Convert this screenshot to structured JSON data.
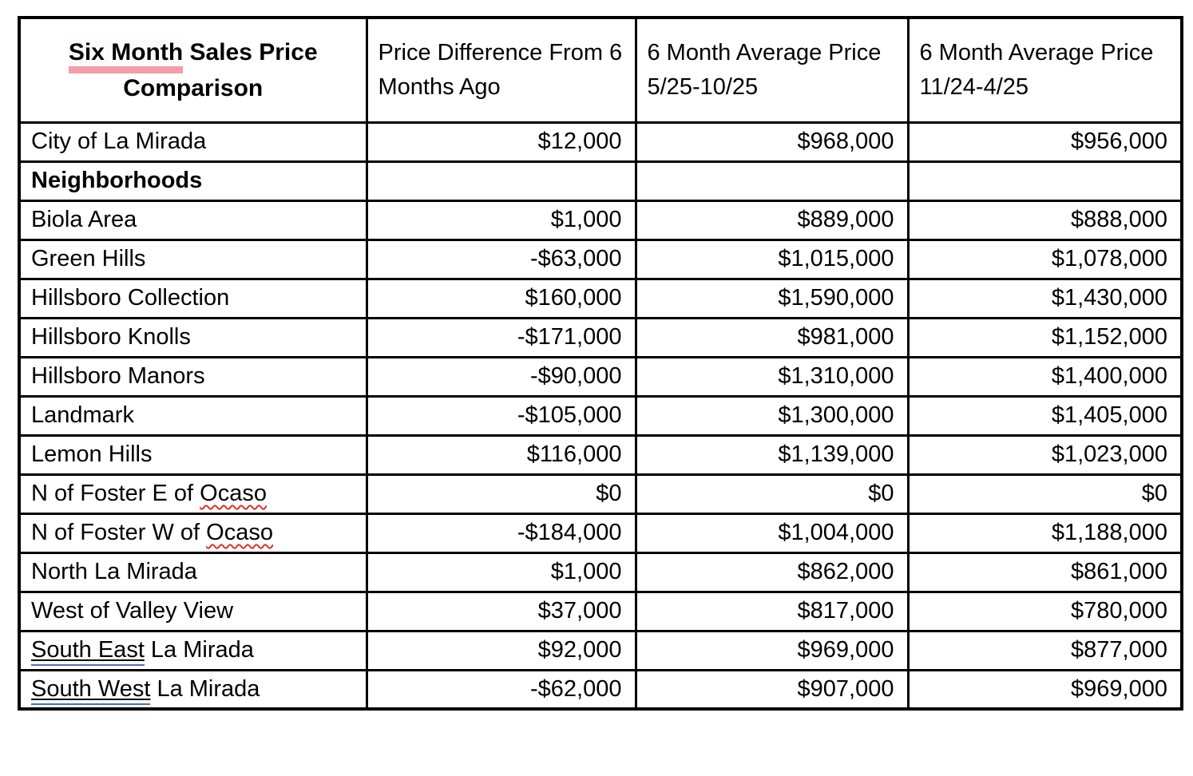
{
  "colors": {
    "title_highlight_pink": "#F59CA9",
    "spellcheck_red": "#E0312E",
    "grammar_blue": "#4472C4",
    "border": "#000000",
    "text": "#000000",
    "background": "#FFFFFF"
  },
  "table": {
    "title": {
      "highlighted": "Six Month",
      "rest": " Sales Price",
      "line2": "Comparison"
    },
    "headers": {
      "col2": "Price Difference From 6 Months Ago",
      "col3": "6 Month Average Price 5/25-10/25",
      "col4": "6 Month Average Price 11/24-4/25"
    },
    "rows": [
      {
        "label_parts": [
          {
            "text": "City of La Mirada"
          }
        ],
        "cells": [
          "$12,000",
          "$968,000",
          "$956,000"
        ]
      },
      {
        "bold": true,
        "label_parts": [
          {
            "text": "Neighborhoods"
          }
        ],
        "cells": [
          "",
          "",
          ""
        ]
      },
      {
        "label_parts": [
          {
            "text": "Biola Area"
          }
        ],
        "cells": [
          "$1,000",
          "$889,000",
          "$888,000"
        ]
      },
      {
        "label_parts": [
          {
            "text": "Green Hills"
          }
        ],
        "cells": [
          "-$63,000",
          "$1,015,000",
          "$1,078,000"
        ]
      },
      {
        "label_parts": [
          {
            "text": "Hillsboro Collection"
          }
        ],
        "cells": [
          "$160,000",
          "$1,590,000",
          "$1,430,000"
        ]
      },
      {
        "label_parts": [
          {
            "text": "Hillsboro Knolls"
          }
        ],
        "cells": [
          "-$171,000",
          "$981,000",
          "$1,152,000"
        ]
      },
      {
        "label_parts": [
          {
            "text": "Hillsboro Manors"
          }
        ],
        "cells": [
          "-$90,000",
          "$1,310,000",
          "$1,400,000"
        ]
      },
      {
        "label_parts": [
          {
            "text": "Landmark"
          }
        ],
        "cells": [
          "-$105,000",
          "$1,300,000",
          "$1,405,000"
        ]
      },
      {
        "label_parts": [
          {
            "text": "Lemon Hills"
          }
        ],
        "cells": [
          "$116,000",
          "$1,139,000",
          "$1,023,000"
        ]
      },
      {
        "label_parts": [
          {
            "text": "N of Foster E of "
          },
          {
            "text": "Ocaso",
            "mark": "spell"
          }
        ],
        "cells": [
          "$0",
          "$0",
          "$0"
        ]
      },
      {
        "label_parts": [
          {
            "text": "N of Foster W of "
          },
          {
            "text": "Ocaso",
            "mark": "spell"
          }
        ],
        "cells": [
          "-$184,000",
          "$1,004,000",
          "$1,188,000"
        ]
      },
      {
        "label_parts": [
          {
            "text": "North La Mirada"
          }
        ],
        "cells": [
          "$1,000",
          "$862,000",
          "$861,000"
        ]
      },
      {
        "label_parts": [
          {
            "text": "West of Valley View"
          }
        ],
        "cells": [
          "$37,000",
          "$817,000",
          "$780,000"
        ]
      },
      {
        "label_parts": [
          {
            "text": "South East",
            "mark": "grammar"
          },
          {
            "text": " La Mirada"
          }
        ],
        "cells": [
          "$92,000",
          "$969,000",
          "$877,000"
        ]
      },
      {
        "label_parts": [
          {
            "text": "South West",
            "mark": "grammar"
          },
          {
            "text": " La Mirada"
          }
        ],
        "cells": [
          "-$62,000",
          "$907,000",
          "$969,000"
        ]
      }
    ]
  }
}
